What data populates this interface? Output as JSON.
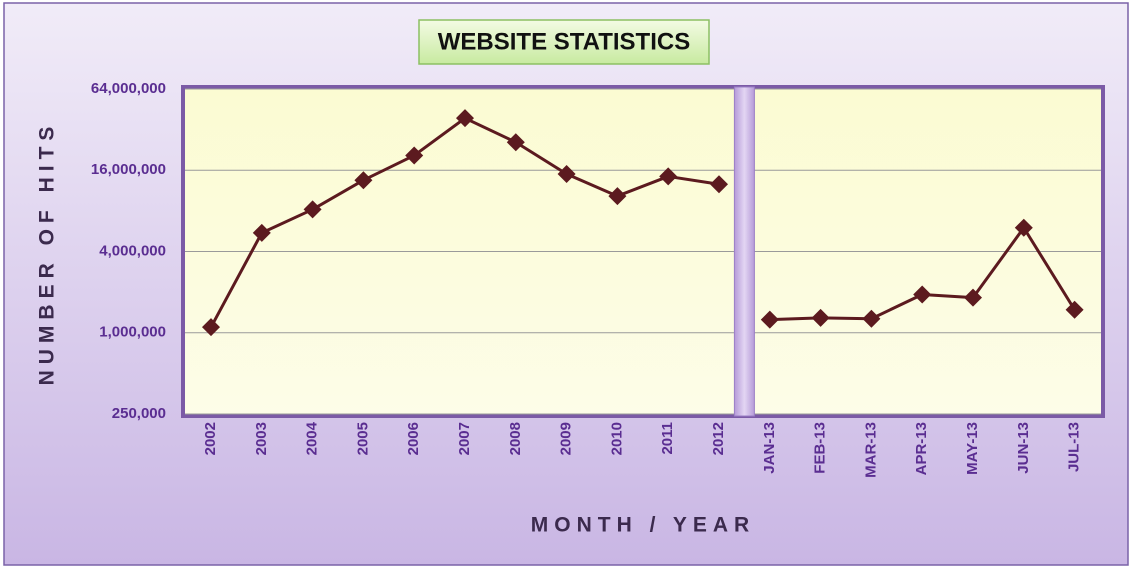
{
  "chart_data": {
    "type": "line",
    "title": "WEBSITE STATISTICS",
    "x_label": "MONTH / YEAR",
    "y_label": "NUMBER OF HITS",
    "categories": [
      "2002",
      "2003",
      "2004",
      "2005",
      "2006",
      "2007",
      "2008",
      "2009",
      "2010",
      "2011",
      "2012",
      null,
      "JAN-13",
      "FEB-13",
      "MAR-13",
      "APR-13",
      "MAY-13",
      "JUN-13",
      "JUL-13"
    ],
    "values": [
      1100000,
      5500000,
      8200000,
      13500000,
      20600000,
      38900000,
      25800000,
      15000000,
      10300000,
      14400000,
      12600000,
      null,
      1250000,
      1290000,
      1270000,
      1920000,
      1820000,
      6000000,
      1480000
    ],
    "color": "#5c1a1f",
    "yscale": "log",
    "ylim": [
      250000,
      64000000
    ],
    "yticks": [
      {
        "value": 250000,
        "label": "250,000"
      },
      {
        "value": 1000000,
        "label": "1,000,000"
      },
      {
        "value": 4000000,
        "label": "4,000,000"
      },
      {
        "value": 16000000,
        "label": "16,000,000"
      },
      {
        "value": 64000000,
        "label": "64,000,000"
      }
    ],
    "grid": true
  }
}
